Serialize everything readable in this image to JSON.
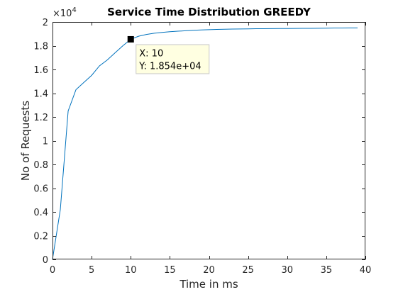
{
  "chart_data": {
    "type": "line",
    "title": "Service Time Distribution GREEDY",
    "xlabel": "Time in ms",
    "ylabel": "No of Requests",
    "y_exponent_label": "×10",
    "y_exponent_power": "4",
    "xlim": [
      0,
      40
    ],
    "ylim": [
      0,
      20000
    ],
    "x_ticks": [
      0,
      5,
      10,
      15,
      20,
      25,
      30,
      35,
      40
    ],
    "x_tick_labels": [
      "0",
      "5",
      "10",
      "15",
      "20",
      "25",
      "30",
      "35",
      "40"
    ],
    "y_ticks": [
      0,
      2000,
      4000,
      6000,
      8000,
      10000,
      12000,
      14000,
      16000,
      18000,
      20000
    ],
    "y_tick_labels": [
      "0",
      "0.2",
      "0.4",
      "0.6",
      "0.8",
      "1",
      "1.2",
      "1.4",
      "1.6",
      "1.8",
      "2"
    ],
    "grid": false,
    "series": [
      {
        "color": "#0072bd",
        "x": [
          0,
          1,
          2,
          3,
          4,
          5,
          6,
          7,
          8,
          9,
          10,
          11,
          12,
          13,
          14,
          15,
          16,
          17,
          18,
          19,
          20,
          21,
          22,
          23,
          24,
          25,
          26,
          27,
          28,
          29,
          30,
          31,
          32,
          33,
          34,
          35,
          36,
          37,
          38,
          39
        ],
        "y": [
          0,
          4200,
          12500,
          14300,
          14900,
          15500,
          16300,
          16800,
          17400,
          18000,
          18540,
          18800,
          18950,
          19050,
          19120,
          19180,
          19220,
          19260,
          19300,
          19330,
          19350,
          19370,
          19390,
          19400,
          19410,
          19420,
          19430,
          19435,
          19440,
          19445,
          19450,
          19455,
          19460,
          19465,
          19470,
          19480,
          19490,
          19495,
          19500,
          19500
        ]
      }
    ],
    "datatip": {
      "x": 10,
      "y": 18540,
      "x_text": "X: 10",
      "y_text": "Y: 1.854e+04"
    }
  }
}
